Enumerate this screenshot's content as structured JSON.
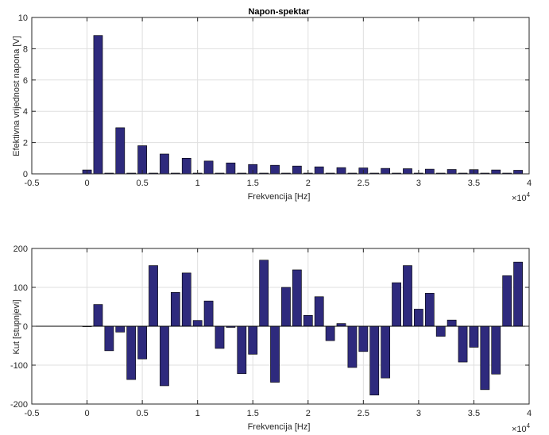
{
  "chart_data": [
    {
      "type": "bar",
      "title": "Napon-spektar",
      "xlabel": "Frekvencija [Hz]",
      "ylabel": "Efektivna vrijednost napona [V]",
      "x_exponent_label": "×10",
      "x_exponent_power": "4",
      "xlim": [
        -5000,
        40000
      ],
      "ylim": [
        0,
        10
      ],
      "grid": true,
      "bar_color": "#2e2a7d",
      "x_ticks": [
        -5000,
        0,
        5000,
        10000,
        15000,
        20000,
        25000,
        30000,
        35000,
        40000
      ],
      "x_tick_labels": [
        "-0.5",
        "0",
        "0.5",
        "1",
        "1.5",
        "2",
        "2.5",
        "3",
        "3.5",
        "4"
      ],
      "y_ticks": [
        0,
        2,
        4,
        6,
        8,
        10
      ],
      "y_tick_labels": [
        "0",
        "2",
        "4",
        "6",
        "8",
        "10"
      ],
      "x": [
        0,
        1000,
        2000,
        3000,
        4000,
        5000,
        6000,
        7000,
        8000,
        9000,
        10000,
        11000,
        12000,
        13000,
        14000,
        15000,
        16000,
        17000,
        18000,
        19000,
        20000,
        21000,
        22000,
        23000,
        24000,
        25000,
        26000,
        27000,
        28000,
        29000,
        30000,
        31000,
        32000,
        33000,
        34000,
        35000,
        36000,
        37000,
        38000,
        39000
      ],
      "values": [
        0.25,
        8.85,
        0.05,
        2.95,
        0.05,
        1.8,
        0.05,
        1.27,
        0.05,
        1.0,
        0.05,
        0.82,
        0.05,
        0.7,
        0.05,
        0.6,
        0.05,
        0.55,
        0.05,
        0.5,
        0.05,
        0.45,
        0.05,
        0.4,
        0.05,
        0.38,
        0.05,
        0.35,
        0.05,
        0.33,
        0.05,
        0.3,
        0.05,
        0.28,
        0.05,
        0.27,
        0.05,
        0.25,
        0.05,
        0.23
      ]
    },
    {
      "type": "bar",
      "title": "",
      "xlabel": "Frekvencija [Hz]",
      "ylabel": "Kut [stupnjevi]",
      "x_exponent_label": "×10",
      "x_exponent_power": "4",
      "xlim": [
        -5000,
        40000
      ],
      "ylim": [
        -200,
        200
      ],
      "grid": true,
      "bar_color": "#2e2a7d",
      "x_ticks": [
        -5000,
        0,
        5000,
        10000,
        15000,
        20000,
        25000,
        30000,
        35000,
        40000
      ],
      "x_tick_labels": [
        "-0.5",
        "0",
        "0.5",
        "1",
        "1.5",
        "2",
        "2.5",
        "3",
        "3.5",
        "4"
      ],
      "y_ticks": [
        -200,
        -100,
        0,
        100,
        200
      ],
      "y_tick_labels": [
        "-200",
        "-100",
        "0",
        "100",
        "200"
      ],
      "x": [
        0,
        1000,
        2000,
        3000,
        4000,
        5000,
        6000,
        7000,
        8000,
        9000,
        10000,
        11000,
        12000,
        13000,
        14000,
        15000,
        16000,
        17000,
        18000,
        19000,
        20000,
        21000,
        22000,
        23000,
        24000,
        25000,
        26000,
        27000,
        28000,
        29000,
        30000,
        31000,
        32000,
        33000,
        34000,
        35000,
        36000,
        37000,
        38000,
        39000
      ],
      "values": [
        0,
        56,
        -63,
        -15,
        -137,
        -84,
        156,
        -153,
        87,
        137,
        15,
        65,
        -57,
        -3,
        -122,
        -72,
        170,
        -144,
        100,
        145,
        28,
        76,
        -37,
        7,
        -106,
        -65,
        -177,
        -133,
        112,
        156,
        44,
        85,
        -26,
        16,
        -92,
        -54,
        -163,
        -123,
        130,
        165
      ]
    }
  ]
}
